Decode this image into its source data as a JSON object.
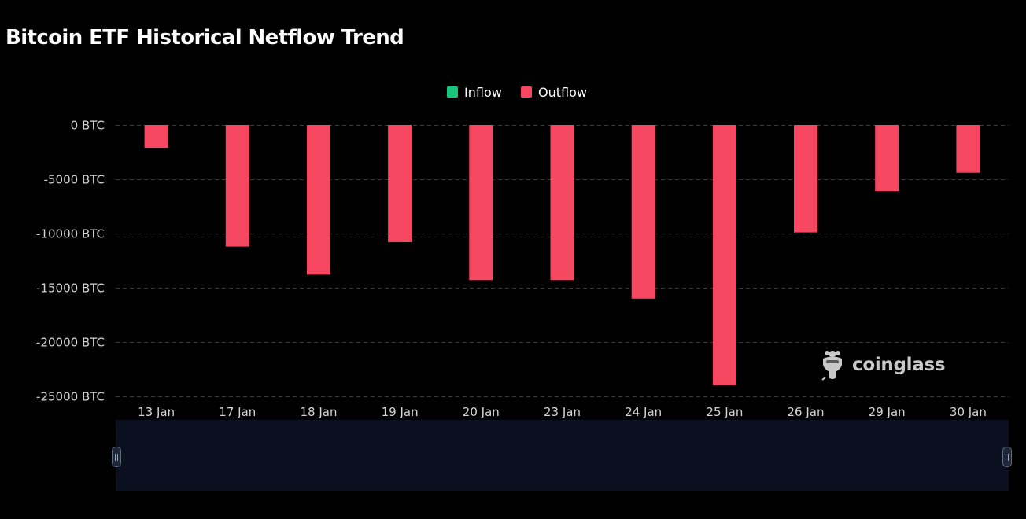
{
  "title": "Bitcoin ETF Historical Netflow Trend",
  "legend": {
    "items": [
      {
        "label": "Inflow",
        "color": "#1bc47d"
      },
      {
        "label": "Outflow",
        "color": "#f64760"
      }
    ]
  },
  "watermark": {
    "text": "coinglass",
    "icon": "coinglass-logo-icon"
  },
  "colors": {
    "inflow": "#1bc47d",
    "outflow": "#f64760",
    "background": "#000000",
    "grid": "#3a3a3a"
  },
  "chart_data": {
    "type": "bar",
    "title": "Bitcoin ETF Historical Netflow Trend",
    "xlabel": "",
    "ylabel": "",
    "categories": [
      "13 Jan",
      "17 Jan",
      "18 Jan",
      "19 Jan",
      "20 Jan",
      "23 Jan",
      "24 Jan",
      "25 Jan",
      "26 Jan",
      "29 Jan",
      "30 Jan"
    ],
    "series": [
      {
        "name": "Outflow",
        "values": [
          -2100,
          -11200,
          -13800,
          -10800,
          -14300,
          -14300,
          -16000,
          -24000,
          -9900,
          -6100,
          -4400
        ]
      },
      {
        "name": "Inflow",
        "values": [
          0,
          0,
          0,
          0,
          0,
          0,
          0,
          0,
          0,
          0,
          0
        ]
      }
    ],
    "ylim": [
      -25000,
      0
    ],
    "yticks": [
      0,
      -5000,
      -10000,
      -15000,
      -20000,
      -25000
    ],
    "ytick_labels": [
      "0 BTC",
      "-5000 BTC",
      "-10000 BTC",
      "-15000 BTC",
      "-20000 BTC",
      "-25000 BTC"
    ],
    "grid": true,
    "legend_position": "top-center",
    "data_zoom": true
  }
}
